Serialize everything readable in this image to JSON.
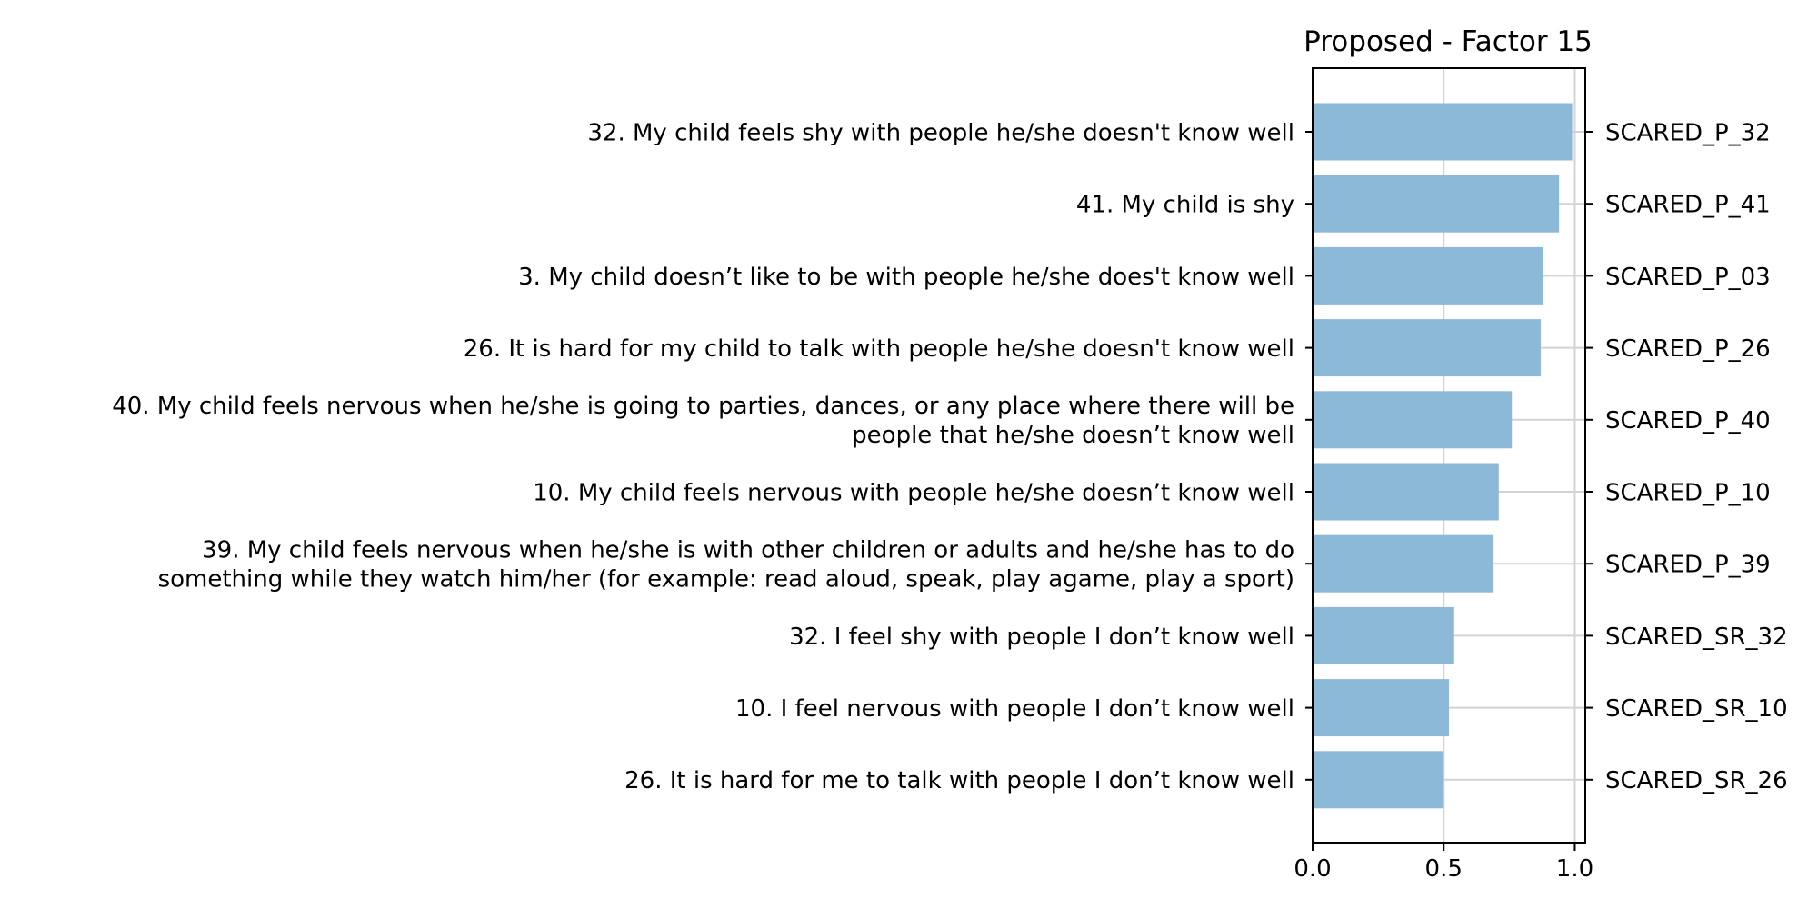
{
  "chart_data": {
    "type": "bar",
    "orientation": "horizontal",
    "title": "Proposed - Factor 15",
    "xlabel": "",
    "ylabel": "",
    "xlim": [
      0,
      1.04
    ],
    "xticks": [
      0.0,
      0.5,
      1.0
    ],
    "xtick_labels": [
      "0.0",
      "0.5",
      "1.0"
    ],
    "grid": true,
    "bar_color": "#8db9d9",
    "items": [
      {
        "label": [
          "32. My child feels shy with people he/she doesn't know well"
        ],
        "code": "SCARED_P_32",
        "value": 0.99
      },
      {
        "label": [
          "41. My child is shy"
        ],
        "code": "SCARED_P_41",
        "value": 0.94
      },
      {
        "label": [
          "3. My child doesn’t like to be with people he/she does't know well"
        ],
        "code": "SCARED_P_03",
        "value": 0.88
      },
      {
        "label": [
          "26. It is hard for my child to talk with people he/she doesn't know well"
        ],
        "code": "SCARED_P_26",
        "value": 0.87
      },
      {
        "label": [
          "40. My child feels nervous when he/she is going to parties, dances, or any place where there will be",
          "people that he/she doesn’t know well"
        ],
        "code": "SCARED_P_40",
        "value": 0.76
      },
      {
        "label": [
          "10. My child feels nervous with people he/she doesn’t know well"
        ],
        "code": "SCARED_P_10",
        "value": 0.71
      },
      {
        "label": [
          "39. My child feels nervous when he/she is with other children or adults and he/she has to do",
          "something while they watch him/her (for example: read aloud, speak, play agame, play a sport)"
        ],
        "code": "SCARED_P_39",
        "value": 0.69
      },
      {
        "label": [
          "32. I feel shy with people I don’t know well"
        ],
        "code": "SCARED_SR_32",
        "value": 0.54
      },
      {
        "label": [
          "10. I feel nervous with people I don’t know well"
        ],
        "code": "SCARED_SR_10",
        "value": 0.52
      },
      {
        "label": [
          "26. It is hard for me to talk with people I don’t know well"
        ],
        "code": "SCARED_SR_26",
        "value": 0.5
      }
    ]
  }
}
